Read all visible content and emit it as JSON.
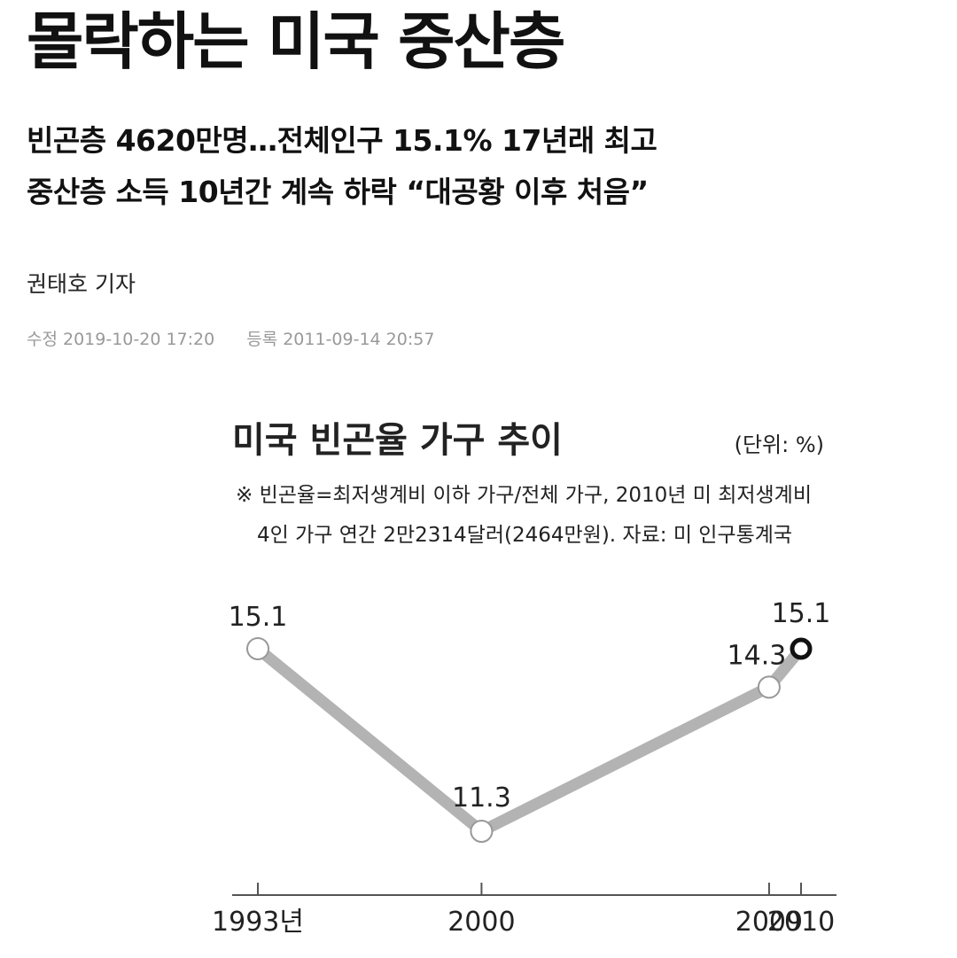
{
  "article": {
    "headline": "몰락하는 미국 중산층",
    "subheadline": [
      "빈곤층 4620만명…전체인구 15.1% 17년래 최고",
      "중산층 소득 10년간 계속 하락 “대공황 이후 처음”"
    ],
    "byline": "권태호 기자",
    "modified": "수정 2019-10-20 17:20",
    "registered": "등록 2011-09-14 20:57"
  },
  "chart_data": {
    "type": "line",
    "title": "미국 빈곤율 가구 추이",
    "unit": "(단위: %)",
    "note": [
      "※ 빈곤율=최저생계비 이하 가구/전체 가구, 2010년 미 최저생계비",
      "4인 가구 연간 2만2314달러(2464만원).  자료: 미 인구통계국"
    ],
    "x": [
      1993,
      2000,
      2009,
      2010
    ],
    "x_tick_labels": [
      "1993년",
      "2000",
      "2009",
      "2010"
    ],
    "values": [
      15.1,
      11.3,
      14.3,
      15.1
    ],
    "data_labels": [
      "15.1",
      "11.3",
      "14.3",
      "15.1"
    ],
    "colors": {
      "line": "#b3b3b3",
      "marker_last": "#111111"
    }
  }
}
